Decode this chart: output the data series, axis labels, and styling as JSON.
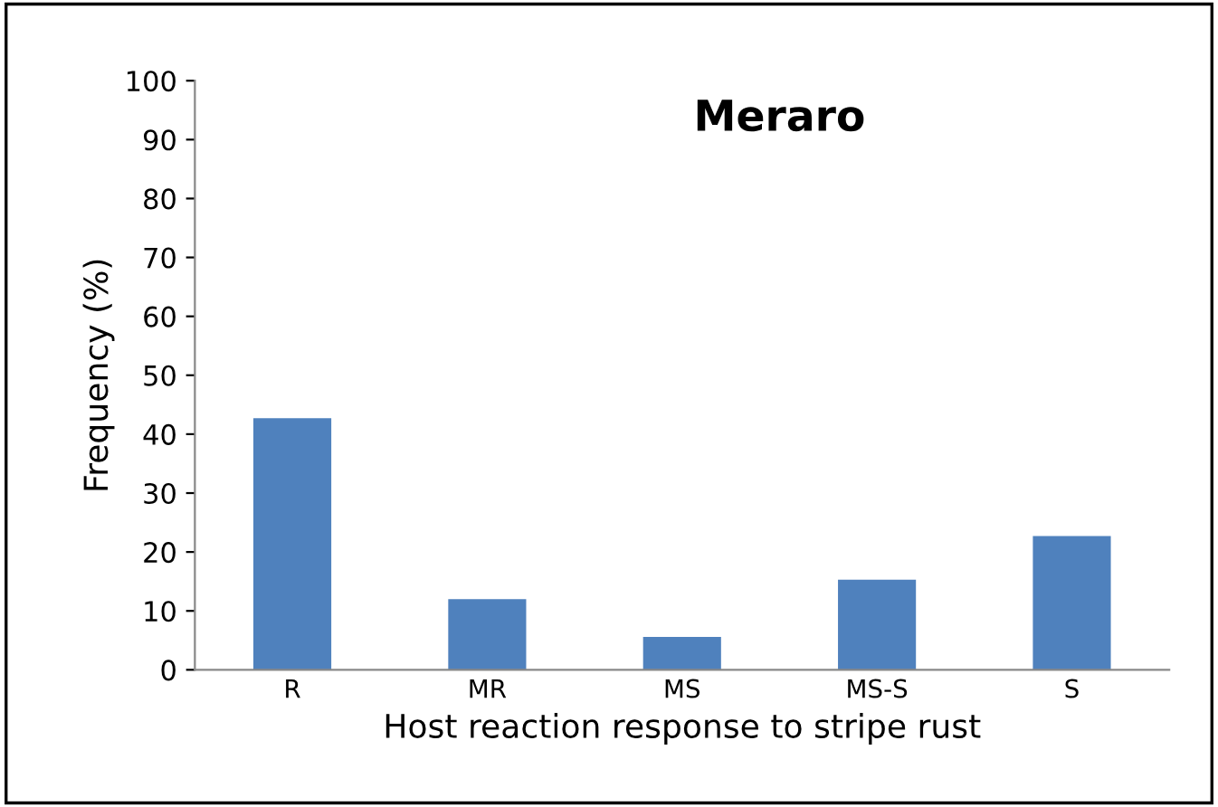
{
  "chart_data": {
    "type": "bar",
    "title": "Meraro",
    "xlabel": "Host reaction response to stripe rust",
    "ylabel": "Frequency (%)",
    "categories": [
      "R",
      "MR",
      "MS",
      "MS-S",
      "S"
    ],
    "values": [
      42.7,
      12,
      5.6,
      15.3,
      22.7
    ],
    "color": "#4f81bd",
    "ylim": [
      0,
      100
    ],
    "yticks": [
      0,
      10,
      20,
      30,
      40,
      50,
      60,
      70,
      80,
      90,
      100
    ],
    "grid": false,
    "legend": false
  }
}
